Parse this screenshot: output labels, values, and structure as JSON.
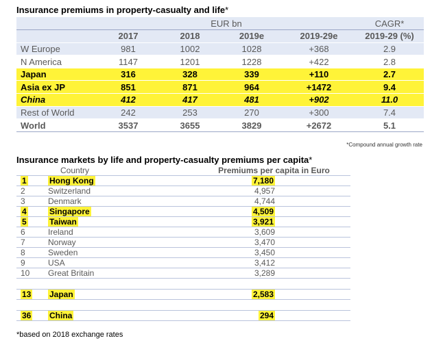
{
  "table1": {
    "title": "Insurance premiums in property-casualty and life",
    "title_star": "*",
    "header_eur": "EUR bn",
    "header_cagr": "CAGR*",
    "col_headers": [
      "",
      "2017",
      "2018",
      "2019e",
      "2019-29e",
      "2019-29 (%)"
    ],
    "rows": [
      {
        "label": "W Europe",
        "v": [
          "981",
          "1002",
          "1028",
          "+368",
          "2.9"
        ]
      },
      {
        "label": "N America",
        "v": [
          "1147",
          "1201",
          "1228",
          "+422",
          "2.8"
        ]
      },
      {
        "label": "Japan",
        "v": [
          "316",
          "328",
          "339",
          "+110",
          "2.7"
        ]
      },
      {
        "label": "Asia ex JP",
        "v": [
          "851",
          "871",
          "964",
          "+1472",
          "9.4"
        ]
      },
      {
        "label": "China",
        "v": [
          "412",
          "417",
          "481",
          "+902",
          "11.0"
        ]
      },
      {
        "label": "Rest of World",
        "v": [
          "242",
          "253",
          "270",
          "+300",
          "7.4"
        ]
      },
      {
        "label": "World",
        "v": [
          "3537",
          "3655",
          "3829",
          "+2672",
          "5.1"
        ]
      }
    ],
    "note": "*Compound annual growth rate"
  },
  "table2": {
    "title": "Insurance markets by life and property-casualty premiums per capita",
    "title_star": "*",
    "col_country": "Country",
    "col_premium": "Premiums per capita in Euro",
    "rows": [
      {
        "rank": "1",
        "country": "Hong Kong",
        "value": "7,180"
      },
      {
        "rank": "2",
        "country": "Switzerland",
        "value": "4,957"
      },
      {
        "rank": "3",
        "country": "Denmark",
        "value": "4,744"
      },
      {
        "rank": "4",
        "country": "Singapore",
        "value": "4,509"
      },
      {
        "rank": "5",
        "country": "Taiwan",
        "value": "3,921"
      },
      {
        "rank": "6",
        "country": "Ireland",
        "value": "3,609"
      },
      {
        "rank": "7",
        "country": "Norway",
        "value": "3,470"
      },
      {
        "rank": "8",
        "country": "Sweden",
        "value": "3,450"
      },
      {
        "rank": "9",
        "country": "USA",
        "value": "3,412"
      },
      {
        "rank": "10",
        "country": "Great Britain",
        "value": "3,289"
      },
      {
        "rank": "13",
        "country": "Japan",
        "value": "2,583"
      },
      {
        "rank": "36",
        "country": "China",
        "value": "294"
      }
    ],
    "note": "*based on 2018 exchange rates"
  },
  "colors": {
    "highlight": "#fff338",
    "shade": "#e3e9f5"
  }
}
